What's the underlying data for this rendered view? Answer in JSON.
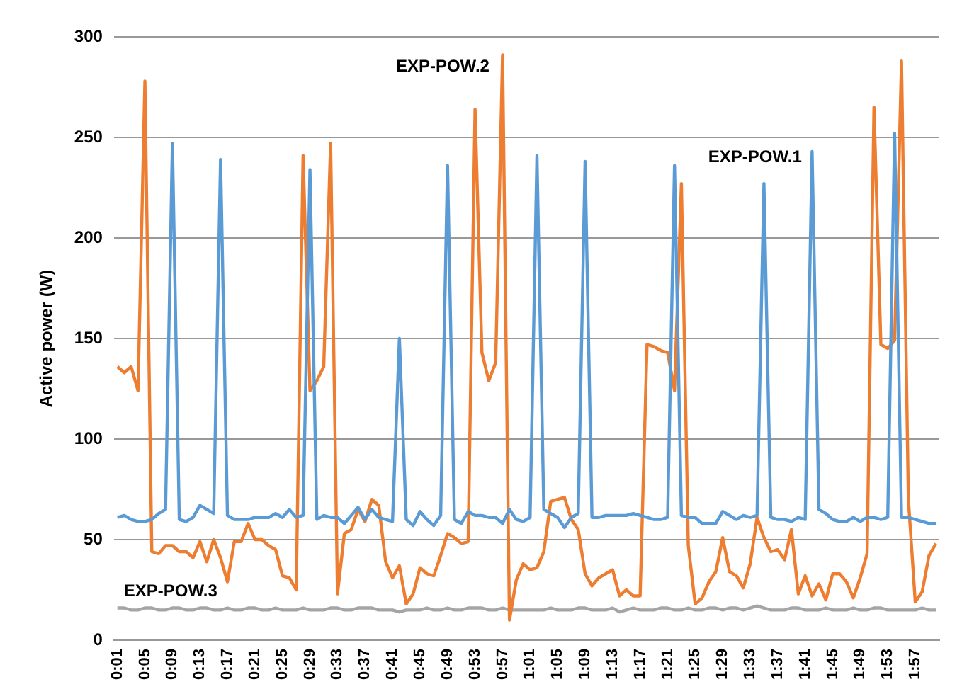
{
  "chart_data": {
    "type": "line",
    "ylabel": "Active power (W)",
    "categories": [
      "0:01",
      null,
      null,
      null,
      "0:05",
      null,
      null,
      null,
      "0:09",
      null,
      null,
      null,
      "0:13",
      null,
      null,
      null,
      "0:17",
      null,
      null,
      null,
      "0:21",
      null,
      null,
      null,
      "0:25",
      null,
      null,
      null,
      "0:29",
      null,
      null,
      null,
      "0:33",
      null,
      null,
      null,
      "0:37",
      null,
      null,
      null,
      "0:41",
      null,
      null,
      null,
      "0:45",
      null,
      null,
      null,
      "0:49",
      null,
      null,
      null,
      "0:53",
      null,
      null,
      null,
      "0:57",
      null,
      null,
      null,
      "1:01",
      null,
      null,
      null,
      "1:05",
      null,
      null,
      null,
      "1:09",
      null,
      null,
      null,
      "1:13",
      null,
      null,
      null,
      "1:17",
      null,
      null,
      null,
      "1:21",
      null,
      null,
      null,
      "1:25",
      null,
      null,
      null,
      "1:29",
      null,
      null,
      null,
      "1:33",
      null,
      null,
      null,
      "1:37",
      null,
      null,
      null,
      "1:41",
      null,
      null,
      null,
      "1:45",
      null,
      null,
      null,
      "1:49",
      null,
      null,
      null,
      "1:53",
      null,
      null,
      null,
      "1:57",
      null,
      null,
      null
    ],
    "series": [
      {
        "name": "EXP-POW.1",
        "color": "#5b9bd5",
        "values": [
          61,
          62,
          60,
          59,
          59,
          60,
          63,
          65,
          247,
          60,
          59,
          61,
          67,
          65,
          63,
          239,
          62,
          60,
          60,
          60,
          61,
          61,
          61,
          63,
          61,
          65,
          61,
          62,
          234,
          60,
          62,
          61,
          61,
          58,
          62,
          66,
          60,
          65,
          61,
          60,
          59,
          150,
          60,
          57,
          64,
          60,
          57,
          62,
          236,
          60,
          58,
          64,
          62,
          62,
          61,
          61,
          58,
          65,
          60,
          59,
          61,
          241,
          65,
          63,
          61,
          56,
          61,
          63,
          238,
          61,
          61,
          62,
          62,
          62,
          62,
          63,
          62,
          61,
          60,
          60,
          61,
          236,
          62,
          61,
          61,
          58,
          58,
          58,
          64,
          62,
          60,
          62,
          61,
          62,
          227,
          61,
          60,
          60,
          59,
          61,
          60,
          243,
          65,
          63,
          60,
          59,
          59,
          61,
          59,
          61,
          61,
          60,
          61,
          252,
          61,
          61,
          60,
          59,
          58,
          58
        ]
      },
      {
        "name": "EXP-POW.2",
        "color": "#ed7d31",
        "values": [
          136,
          133,
          136,
          124,
          278,
          44,
          43,
          47,
          47,
          44,
          44,
          41,
          49,
          39,
          50,
          41,
          29,
          49,
          49,
          58,
          50,
          50,
          47,
          45,
          32,
          31,
          25,
          241,
          124,
          129,
          136,
          247,
          23,
          53,
          55,
          65,
          59,
          70,
          67,
          39,
          31,
          37,
          18,
          23,
          36,
          33,
          32,
          42,
          53,
          51,
          48,
          49,
          264,
          143,
          129,
          138,
          291,
          10,
          30,
          38,
          35,
          36,
          44,
          69,
          70,
          71,
          60,
          55,
          33,
          27,
          31,
          33,
          35,
          22,
          25,
          22,
          22,
          147,
          146,
          144,
          143,
          124,
          227,
          47,
          18,
          21,
          29,
          34,
          51,
          34,
          32,
          26,
          38,
          61,
          51,
          44,
          45,
          40,
          55,
          23,
          32,
          22,
          28,
          20,
          33,
          33,
          29,
          21,
          31,
          43,
          265,
          147,
          145,
          149,
          288,
          70,
          19,
          24,
          42,
          48
        ]
      },
      {
        "name": "EXP-POW.3",
        "color": "#a5a5a5",
        "values": [
          16,
          16,
          15,
          15,
          16,
          16,
          15,
          15,
          16,
          16,
          15,
          15,
          16,
          16,
          15,
          15,
          16,
          15,
          15,
          16,
          16,
          15,
          15,
          16,
          15,
          15,
          15,
          16,
          15,
          15,
          15,
          16,
          16,
          15,
          15,
          16,
          16,
          16,
          15,
          15,
          15,
          14,
          15,
          15,
          15,
          16,
          15,
          15,
          16,
          15,
          15,
          16,
          16,
          16,
          15,
          15,
          16,
          15,
          15,
          15,
          15,
          15,
          15,
          16,
          15,
          15,
          15,
          16,
          16,
          15,
          15,
          15,
          16,
          14,
          15,
          16,
          15,
          15,
          15,
          16,
          16,
          15,
          15,
          16,
          15,
          15,
          16,
          16,
          15,
          16,
          16,
          15,
          16,
          17,
          16,
          15,
          15,
          15,
          16,
          16,
          15,
          15,
          15,
          16,
          15,
          15,
          15,
          16,
          15,
          15,
          16,
          16,
          15,
          15,
          15,
          15,
          15,
          16,
          15,
          15
        ]
      }
    ],
    "ylim": [
      0,
      300
    ],
    "yticks": [
      0,
      50,
      100,
      150,
      200,
      250,
      300
    ],
    "grid": "y",
    "marker": "none"
  }
}
